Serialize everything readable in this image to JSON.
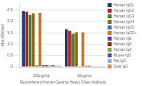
{
  "chart_data": {
    "type": "bar",
    "categories": [
      "100ng/mL",
      "10ng/mL"
    ],
    "series": [
      {
        "name": "Human IgG1",
        "color": "#1f3a6e",
        "values": [
          2.45,
          1.65
        ]
      },
      {
        "name": "Human IgG2",
        "color": "#b22222",
        "values": [
          2.42,
          1.58
        ]
      },
      {
        "name": "Human IgG3",
        "color": "#4a7c35",
        "values": [
          2.28,
          1.45
        ]
      },
      {
        "name": "Human IgG4",
        "color": "#8b6914",
        "values": [
          2.35,
          1.52
        ]
      },
      {
        "name": "Human IgG5",
        "color": "#3a6ea8",
        "values": [
          0.06,
          0.03
        ]
      },
      {
        "name": "Human IgGFc",
        "color": "#c8782a",
        "values": [
          2.38,
          1.52
        ]
      },
      {
        "name": "Human IgE",
        "color": "#6a3090",
        "values": [
          0.07,
          0.04
        ]
      },
      {
        "name": "Human IgD",
        "color": "#7a3010",
        "values": [
          0.07,
          0.04
        ]
      },
      {
        "name": "Human IgA",
        "color": "#7aab50",
        "values": [
          0.06,
          0.03
        ]
      },
      {
        "name": "Mouse IgG",
        "color": "#5050a0",
        "values": [
          0.07,
          0.03
        ]
      },
      {
        "name": "Rat IgG",
        "color": "#80b8d8",
        "values": [
          0.05,
          0.03
        ]
      },
      {
        "name": "Goat IgG",
        "color": "#d4924a",
        "values": [
          0.05,
          0.03
        ]
      }
    ],
    "ylabel": "Abs.(450nm)",
    "xlabel": "Recombinant Human Gamma Heavy Chain Antibody",
    "ylim": [
      0,
      2.8
    ],
    "yticks": [
      0,
      0.5,
      {
        "value": 1,
        "label": "1.0"
      },
      1.5,
      {
        "value": 2,
        "label": "2.0"
      },
      2.5
    ],
    "grid": true,
    "legend": "right"
  }
}
